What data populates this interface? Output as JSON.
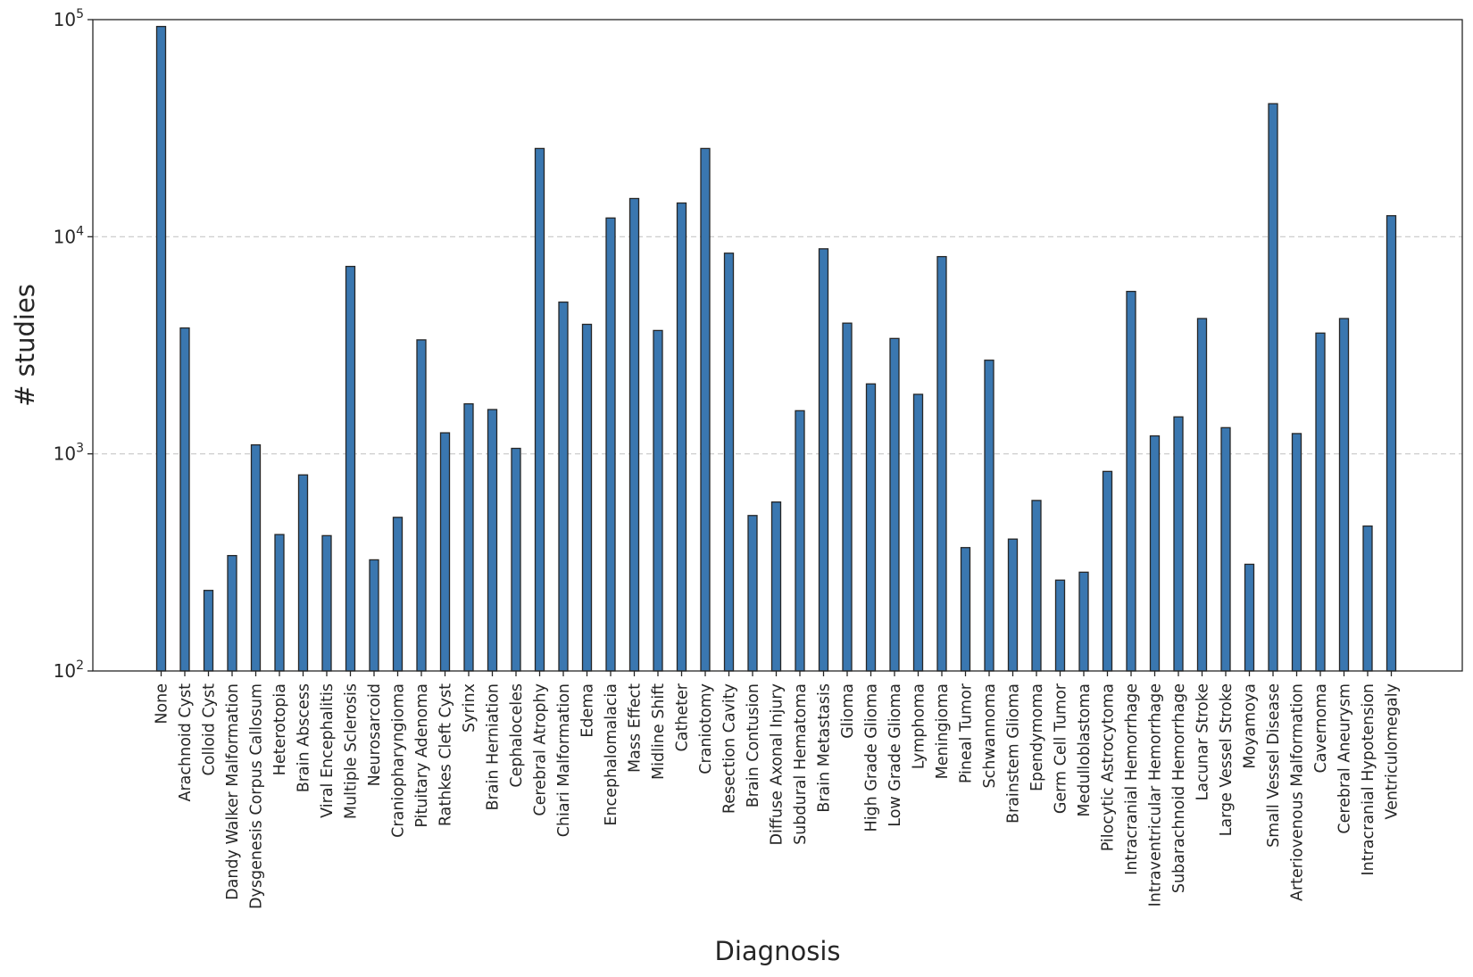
{
  "chart_data": {
    "type": "bar",
    "title": "",
    "xlabel": "Diagnosis",
    "ylabel": "# studies",
    "yscale": "log",
    "ylim": [
      100,
      100000
    ],
    "yticks": [
      {
        "value": 100,
        "base": "10",
        "exp": "2"
      },
      {
        "value": 1000,
        "base": "10",
        "exp": "3"
      },
      {
        "value": 10000,
        "base": "10",
        "exp": "4"
      },
      {
        "value": 100000,
        "base": "10",
        "exp": "5"
      }
    ],
    "grid": "horizontal dashed",
    "bar_color": "#3a77b0",
    "categories": [
      "None",
      "Arachnoid Cyst",
      "Colloid Cyst",
      "Dandy Walker Malformation",
      "Dysgenesis Corpus Callosum",
      "Heterotopia",
      "Brain Abscess",
      "Viral Encephalitis",
      "Multiple Sclerosis",
      "Neurosarcoid",
      "Craniopharyngioma",
      "Pituitary Adenoma",
      "Rathkes Cleft Cyst",
      "Syrinx",
      "Brain Herniation",
      "Cephaloceles",
      "Cerebral Atrophy",
      "Chiari Malformation",
      "Edema",
      "Encephalomalacia",
      "Mass Effect",
      "Midline Shift",
      "Catheter",
      "Craniotomy",
      "Resection Cavity",
      "Brain Contusion",
      "Diffuse Axonal Injury",
      "Subdural Hematoma",
      "Brain Metastasis",
      "Glioma",
      "High Grade Glioma",
      "Low Grade Glioma",
      "Lymphoma",
      "Meningioma",
      "Pineal Tumor",
      "Schwannoma",
      "Brainstem Glioma",
      "Ependymoma",
      "Germ Cell Tumor",
      "Medulloblastoma",
      "Pilocytic Astrocytoma",
      "Intracranial Hemorrhage",
      "Intraventricular Hemorrhage",
      "Subarachnoid Hemorrhage",
      "Lacunar Stroke",
      "Large Vessel Stroke",
      "Moyamoya",
      "Small Vessel Disease",
      "Arteriovenous Malformation",
      "Cavernoma",
      "Cerebral Aneurysm",
      "Intracranial Hypotension",
      "Ventriculomegaly"
    ],
    "values": [
      93000,
      3800,
      235,
      340,
      1100,
      425,
      800,
      420,
      7300,
      325,
      510,
      3350,
      1250,
      1700,
      1600,
      1060,
      25500,
      5000,
      3950,
      12200,
      15000,
      3700,
      14300,
      25500,
      8400,
      520,
      600,
      1580,
      8800,
      4000,
      2100,
      3400,
      1880,
      8100,
      370,
      2700,
      405,
      610,
      262,
      285,
      830,
      5600,
      1210,
      1480,
      4200,
      1320,
      310,
      41000,
      1240,
      3600,
      4200,
      465,
      12500
    ]
  }
}
